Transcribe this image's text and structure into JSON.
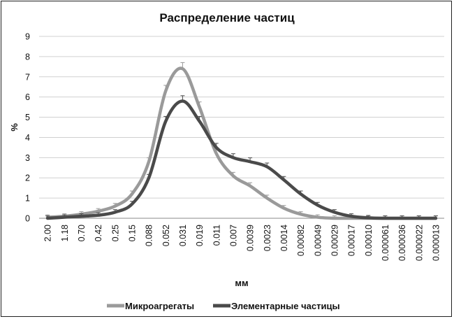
{
  "chart_data": {
    "type": "line",
    "title": "Распределение частиц",
    "xlabel": "мм",
    "ylabel": "%",
    "ylim": [
      0,
      9
    ],
    "yticks": [
      "0",
      "1",
      "2",
      "3",
      "4",
      "5",
      "6",
      "7",
      "8",
      "9"
    ],
    "grid": true,
    "legend_position": "bottom",
    "categories": [
      "2.00",
      "1.18",
      "0.70",
      "0.42",
      "0.25",
      "0.15",
      "0.088",
      "0.052",
      "0.031",
      "0.019",
      "0.011",
      "0.007",
      "0.0039",
      "0.0023",
      "0.0014",
      "0.00082",
      "0.00049",
      "0.00029",
      "0.00017",
      "0.00010",
      "0.000061",
      "0.000036",
      "0.000022",
      "0.000013"
    ],
    "series": [
      {
        "name": "Микроагрегаты",
        "color": "#9a9a9a",
        "values": [
          0.05,
          0.1,
          0.2,
          0.35,
          0.6,
          1.2,
          2.8,
          6.3,
          7.4,
          5.5,
          3.2,
          2.1,
          1.6,
          1.0,
          0.5,
          0.2,
          0.05,
          0.0,
          0.0,
          0.0,
          0.0,
          0.0,
          0.0,
          0.0
        ]
      },
      {
        "name": "Элементарные частицы",
        "color": "#4a4a4a",
        "values": [
          0.0,
          0.05,
          0.1,
          0.15,
          0.3,
          0.7,
          2.0,
          4.8,
          5.8,
          4.8,
          3.5,
          3.0,
          2.8,
          2.55,
          1.9,
          1.2,
          0.65,
          0.3,
          0.1,
          0.02,
          0.0,
          0.0,
          0.0,
          0.0
        ]
      }
    ]
  }
}
